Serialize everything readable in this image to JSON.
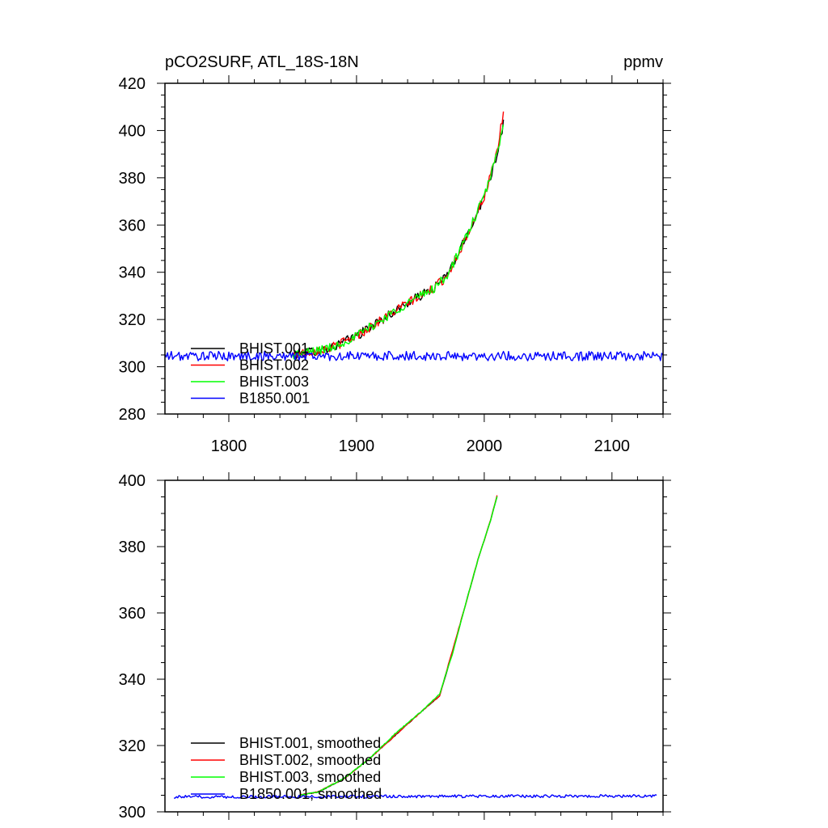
{
  "chart_data": [
    {
      "type": "line",
      "title": "pCO2SURF, ATL_18S-18N",
      "units": "ppmv",
      "xlim": [
        1750,
        2140
      ],
      "ylim": [
        280,
        420
      ],
      "xticks": [
        1800,
        1900,
        2000,
        2100
      ],
      "xtick_labels": [
        "1800",
        "1900",
        "2000",
        "2100"
      ],
      "yticks": [
        280,
        300,
        320,
        340,
        360,
        380,
        400,
        420
      ],
      "ytick_labels": [
        "280",
        "300",
        "320",
        "340",
        "360",
        "380",
        "400",
        "420"
      ],
      "legend_position": "bottom-left",
      "series": [
        {
          "name": "BHIST.001",
          "color": "#000000",
          "x_range": [
            1850,
            2015
          ],
          "anchors_x": [
            1850,
            1880,
            1900,
            1920,
            1940,
            1960,
            1970,
            1980,
            1990,
            2000,
            2010,
            2015
          ],
          "anchors_y": [
            305,
            308,
            313,
            320,
            327,
            333,
            338,
            348,
            360,
            372,
            390,
            403
          ],
          "noise": 2.0
        },
        {
          "name": "BHIST.002",
          "color": "#ff0000",
          "x_range": [
            1850,
            2015
          ],
          "anchors_x": [
            1850,
            1880,
            1900,
            1920,
            1940,
            1960,
            1970,
            1980,
            1990,
            2000,
            2010,
            2015
          ],
          "anchors_y": [
            305,
            308,
            313,
            320,
            327,
            333,
            338,
            348,
            360,
            372,
            390,
            408
          ],
          "noise": 2.0
        },
        {
          "name": "BHIST.003",
          "color": "#00ff00",
          "x_range": [
            1850,
            2015
          ],
          "anchors_x": [
            1850,
            1880,
            1900,
            1920,
            1940,
            1960,
            1970,
            1980,
            1990,
            2000,
            2010,
            2015
          ],
          "anchors_y": [
            305,
            308,
            313,
            320,
            327,
            333,
            338,
            348,
            360,
            372,
            390,
            404
          ],
          "noise": 2.0
        },
        {
          "name": "B1850.001",
          "color": "#0000ff",
          "x_range": [
            1750,
            2140
          ],
          "anchors_x": [
            1750,
            2140
          ],
          "anchors_y": [
            304.5,
            304.5
          ],
          "noise": 2.0
        }
      ]
    },
    {
      "type": "line",
      "xlim": [
        1750,
        2140
      ],
      "ylim": [
        300,
        400
      ],
      "xticks": [
        1800,
        1900,
        2000,
        2100
      ],
      "yticks": [
        300,
        320,
        340,
        360,
        380,
        400
      ],
      "ytick_labels": [
        "300",
        "320",
        "340",
        "360",
        "380",
        "400"
      ],
      "legend_position": "bottom-left",
      "series": [
        {
          "name": "BHIST.001, smoothed",
          "color": "#000000",
          "x_range": [
            1855,
            2010
          ],
          "anchors_x": [
            1855,
            1870,
            1890,
            1910,
            1930,
            1950,
            1965,
            1975,
            1985,
            1995,
            2005,
            2010
          ],
          "anchors_y": [
            305,
            306,
            310,
            316,
            323,
            330,
            335,
            348,
            362,
            376,
            388,
            395
          ],
          "noise": 0.15
        },
        {
          "name": "BHIST.002, smoothed",
          "color": "#ff0000",
          "x_range": [
            1855,
            2010
          ],
          "anchors_x": [
            1855,
            1870,
            1890,
            1910,
            1930,
            1950,
            1965,
            1975,
            1985,
            1995,
            2005,
            2010
          ],
          "anchors_y": [
            305,
            306,
            310,
            316,
            323,
            330,
            335,
            348.5,
            362,
            376,
            388,
            395.5
          ],
          "noise": 0.15
        },
        {
          "name": "BHIST.003, smoothed",
          "color": "#00ff00",
          "x_range": [
            1855,
            2010
          ],
          "anchors_x": [
            1855,
            1870,
            1890,
            1910,
            1930,
            1950,
            1965,
            1975,
            1985,
            1995,
            2005,
            2010
          ],
          "anchors_y": [
            305,
            306,
            310,
            316,
            323.5,
            330,
            335.5,
            347.5,
            362,
            376,
            388,
            395
          ],
          "noise": 0.15
        },
        {
          "name": "B1850.001, smoothed",
          "color": "#0000ff",
          "x_range": [
            1757,
            2135
          ],
          "anchors_x": [
            1757,
            2135
          ],
          "anchors_y": [
            304.5,
            304.8
          ],
          "noise": 0.45
        }
      ]
    }
  ]
}
